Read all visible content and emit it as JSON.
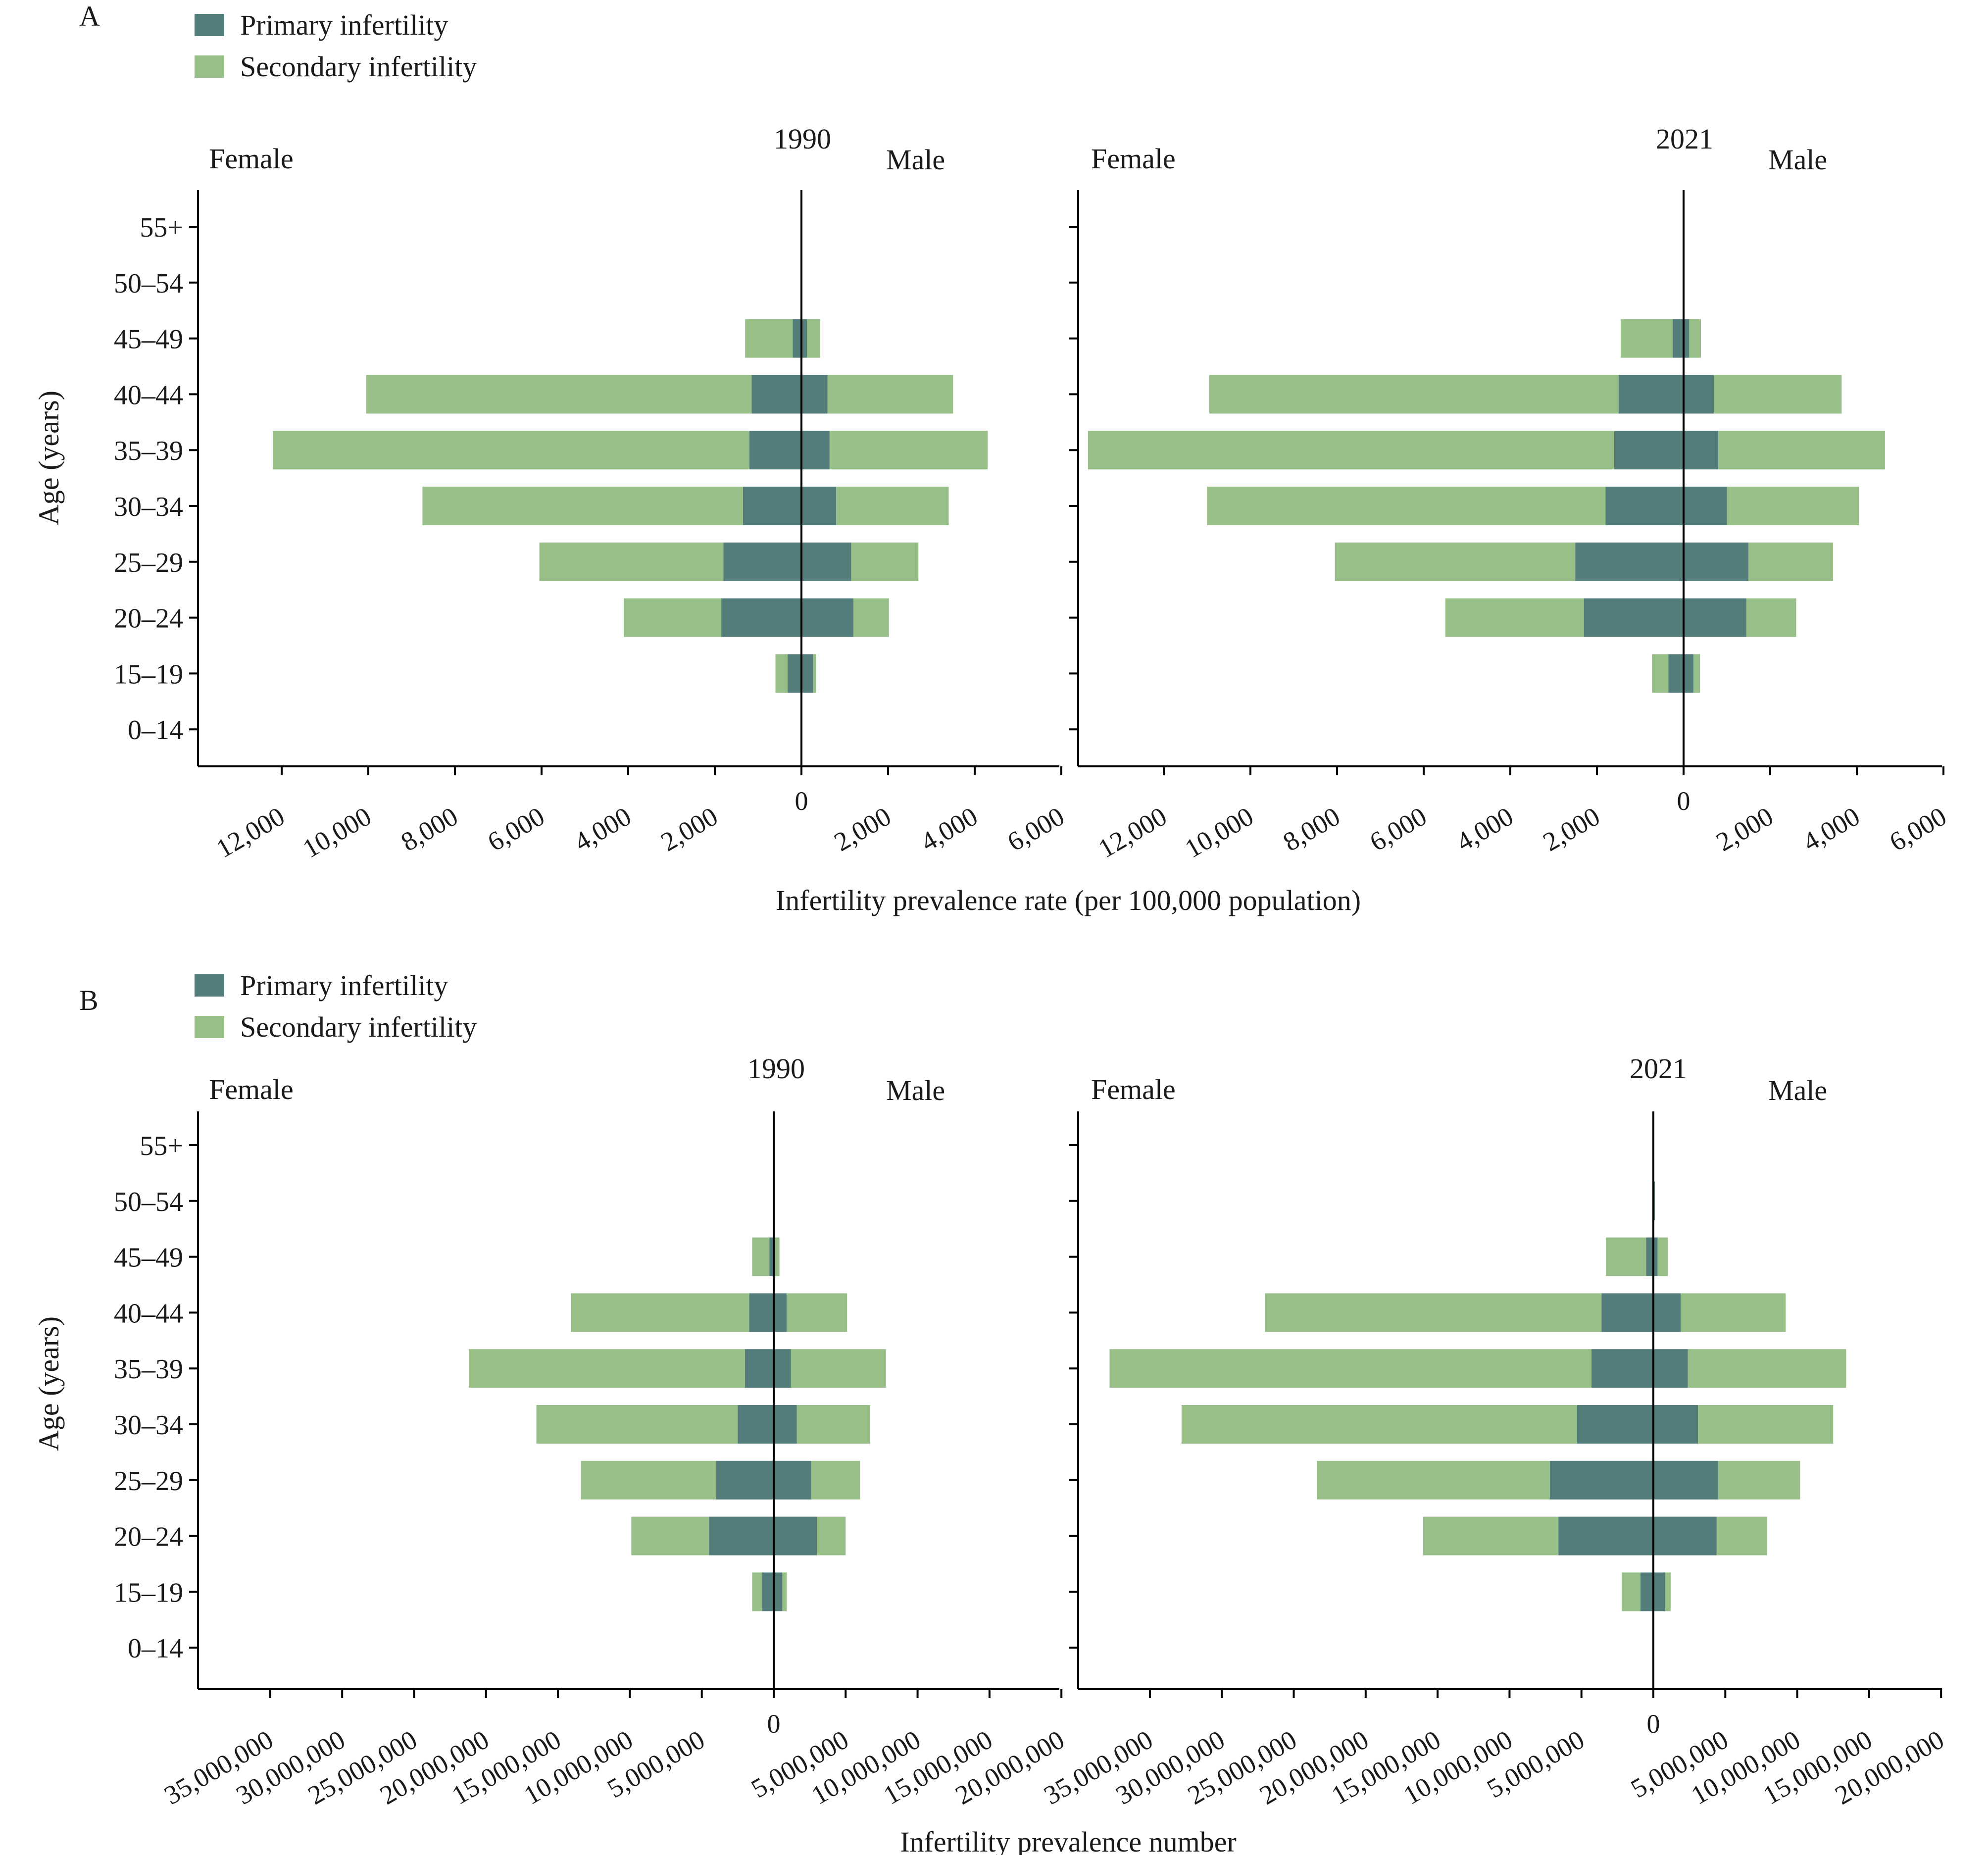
{
  "colors": {
    "primary": "#527d7a",
    "secondary": "#98bf88"
  },
  "panels": [
    {
      "label": "A",
      "legend": [
        "Primary infertility",
        "Secondary infertility"
      ],
      "xlabel": "Infertility prevalence rate (per 100,000 population)",
      "ylabel": "Age (years)",
      "charts": [
        {
          "title": "1990",
          "female_label": "Female",
          "male_label": "Male",
          "ticks": [
            "12,000",
            "10,000",
            "8,000",
            "6,000",
            "4,000",
            "2,000",
            "0",
            "2,000",
            "4,000",
            "6,000"
          ]
        },
        {
          "title": "2021",
          "female_label": "Female",
          "male_label": "Male",
          "ticks": [
            "12,000",
            "10,000",
            "8,000",
            "6,000",
            "4,000",
            "2,000",
            "0",
            "2,000",
            "4,000",
            "6,000"
          ]
        }
      ]
    },
    {
      "label": "B",
      "legend": [
        "Primary infertility",
        "Secondary infertility"
      ],
      "xlabel": "Infertility prevalence number",
      "ylabel": "Age (years)",
      "charts": [
        {
          "title": "1990",
          "female_label": "Female",
          "male_label": "Male",
          "ticks": [
            "35,000,000",
            "30,000,000",
            "25,000,000",
            "20,000,000",
            "15,000,000",
            "10,000,000",
            "5,000,000",
            "0",
            "5,000,000",
            "10,000,000",
            "15,000,000",
            "20,000,000"
          ]
        },
        {
          "title": "2021",
          "female_label": "Female",
          "male_label": "Male",
          "ticks": [
            "35,000,000",
            "30,000,000",
            "25,000,000",
            "20,000,000",
            "15,000,000",
            "10,000,000",
            "5,000,000",
            "0",
            "5,000,000",
            "10,000,000",
            "15,000,000",
            "20,000,000"
          ]
        }
      ]
    }
  ],
  "chart_data": [
    {
      "type": "bar",
      "orientation": "horizontal",
      "panel": "A",
      "title": "1990",
      "xlabel": "Infertility prevalence rate (per 100,000 population)",
      "ylabel": "Age (years)",
      "categories": [
        "55+",
        "50–54",
        "45–49",
        "40–44",
        "35–39",
        "30–34",
        "25–29",
        "20–24",
        "15–19",
        "0–14"
      ],
      "xlim_female": [
        0,
        14000
      ],
      "xlim_male": [
        0,
        6000
      ],
      "series": [
        {
          "name": "Primary infertility",
          "group": "Female",
          "values": [
            0,
            0,
            200,
            1150,
            1200,
            1350,
            1800,
            1850,
            320,
            0
          ]
        },
        {
          "name": "Secondary infertility",
          "group": "Female",
          "values": [
            0,
            20,
            1100,
            8900,
            11000,
            7400,
            4250,
            2250,
            280,
            0
          ]
        },
        {
          "name": "Primary infertility",
          "group": "Male",
          "values": [
            0,
            0,
            130,
            600,
            650,
            800,
            1150,
            1200,
            270,
            0
          ]
        },
        {
          "name": "Secondary infertility",
          "group": "Male",
          "values": [
            0,
            20,
            300,
            2900,
            3650,
            2600,
            1550,
            820,
            70,
            0
          ]
        }
      ]
    },
    {
      "type": "bar",
      "orientation": "horizontal",
      "panel": "A",
      "title": "2021",
      "xlabel": "Infertility prevalence rate (per 100,000 population)",
      "ylabel": "Age (years)",
      "categories": [
        "55+",
        "50–54",
        "45–49",
        "40–44",
        "35–39",
        "30–34",
        "25–29",
        "20–24",
        "15–19",
        "0–14"
      ],
      "xlim_female": [
        0,
        14000
      ],
      "xlim_male": [
        0,
        6000
      ],
      "series": [
        {
          "name": "Primary infertility",
          "group": "Female",
          "values": [
            0,
            0,
            250,
            1500,
            1600,
            1800,
            2500,
            2300,
            350,
            0
          ]
        },
        {
          "name": "Secondary infertility",
          "group": "Female",
          "values": [
            0,
            20,
            1200,
            9450,
            12150,
            9200,
            5550,
            3200,
            380,
            0
          ]
        },
        {
          "name": "Primary infertility",
          "group": "Male",
          "values": [
            0,
            0,
            130,
            700,
            800,
            1000,
            1500,
            1450,
            230,
            0
          ]
        },
        {
          "name": "Secondary infertility",
          "group": "Male",
          "values": [
            0,
            20,
            270,
            2950,
            3850,
            3050,
            1950,
            1150,
            150,
            0
          ]
        }
      ]
    },
    {
      "type": "bar",
      "orientation": "horizontal",
      "panel": "B",
      "title": "1990",
      "xlabel": "Infertility prevalence number",
      "ylabel": "Age (years)",
      "categories": [
        "55+",
        "50–54",
        "45–49",
        "40–44",
        "35–39",
        "30–34",
        "25–29",
        "20–24",
        "15–19",
        "0–14"
      ],
      "xlim_female": [
        0,
        40000000
      ],
      "xlim_male": [
        0,
        20000000
      ],
      "series": [
        {
          "name": "Primary infertility",
          "group": "Female",
          "values": [
            0,
            0,
            300000,
            1700000,
            2000000,
            2500000,
            4000000,
            4500000,
            800000,
            0
          ]
        },
        {
          "name": "Secondary infertility",
          "group": "Female",
          "values": [
            0,
            0,
            1200000,
            12400000,
            19200000,
            14000000,
            9400000,
            5400000,
            700000,
            0
          ]
        },
        {
          "name": "Primary infertility",
          "group": "Male",
          "values": [
            0,
            0,
            100000,
            900000,
            1200000,
            1600000,
            2600000,
            3000000,
            600000,
            0
          ]
        },
        {
          "name": "Secondary infertility",
          "group": "Male",
          "values": [
            0,
            0,
            300000,
            4200000,
            6600000,
            5100000,
            3400000,
            2000000,
            300000,
            0
          ]
        }
      ]
    },
    {
      "type": "bar",
      "orientation": "horizontal",
      "panel": "B",
      "title": "2021",
      "xlabel": "Infertility prevalence number",
      "ylabel": "Age (years)",
      "categories": [
        "55+",
        "50–54",
        "45–49",
        "40–44",
        "35–39",
        "30–34",
        "25–29",
        "20–24",
        "15–19",
        "0–14"
      ],
      "xlim_female": [
        0,
        40000000
      ],
      "xlim_male": [
        0,
        20000000
      ],
      "series": [
        {
          "name": "Primary infertility",
          "group": "Female",
          "values": [
            0,
            0,
            500000,
            3600000,
            4300000,
            5300000,
            7200000,
            6600000,
            900000,
            0
          ]
        },
        {
          "name": "Secondary infertility",
          "group": "Female",
          "values": [
            0,
            0,
            2800000,
            23400000,
            33500000,
            27500000,
            16200000,
            9400000,
            1300000,
            0
          ]
        },
        {
          "name": "Primary infertility",
          "group": "Male",
          "values": [
            0,
            100000,
            300000,
            1900000,
            2400000,
            3100000,
            4500000,
            4400000,
            800000,
            0
          ]
        },
        {
          "name": "Secondary infertility",
          "group": "Male",
          "values": [
            0,
            0,
            700000,
            7300000,
            11000000,
            9400000,
            5700000,
            3500000,
            400000,
            0
          ]
        }
      ]
    }
  ]
}
